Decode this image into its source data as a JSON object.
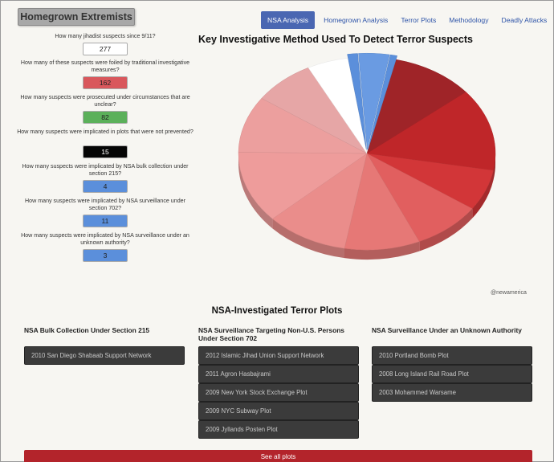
{
  "brand": {
    "title": "Homegrown Extremists"
  },
  "nav": {
    "items": [
      "NSA Analysis",
      "Homegrown Analysis",
      "Terror Plots",
      "Methodology",
      "Deadly Attacks"
    ]
  },
  "questions": [
    {
      "text": "How many jihadist suspects since 9/11?",
      "value": "277",
      "bg": "#ffffff",
      "color": "#222222"
    },
    {
      "text": "How many of these suspects were foiled by traditional investigative measures?",
      "value": "162",
      "bg": "#d9575c",
      "color": "#222222"
    },
    {
      "text": "How many suspects were prosecuted under circumstances that are unclear?",
      "value": "82",
      "bg": "#5bb05a",
      "color": "#222222"
    },
    {
      "text": "How many suspects were implicated in plots that were not prevented?",
      "value": "15",
      "bg": "#050505",
      "color": "#ffffff"
    },
    {
      "text": "How many suspects were implicated by NSA bulk collection under section 215?",
      "value": "4",
      "bg": "#5b8fdb",
      "color": "#222222"
    },
    {
      "text": "How many suspects were implicated by NSA surveillance under section 702?",
      "value": "11",
      "bg": "#5b8fdb",
      "color": "#222222"
    },
    {
      "text": "How many suspects were implicated by NSA surveillance under an unknown authority?",
      "value": "3",
      "bg": "#5b8fdb",
      "color": "#222222"
    }
  ],
  "chart": {
    "title": "Key Investigative Method Used To Detect Terror Suspects",
    "credit": "@newamerica"
  },
  "chart_data": {
    "type": "pie",
    "title": "Key Investigative Method Used To Detect Terror Suspects",
    "slices": [
      {
        "value": 12,
        "color": "#9f2428"
      },
      {
        "value": 16,
        "color": "#bf2629"
      },
      {
        "value": 8,
        "color": "#d23638"
      },
      {
        "value": 10,
        "color": "#e15f5f"
      },
      {
        "value": 11,
        "color": "#e67876"
      },
      {
        "value": 12,
        "color": "#ea8d8b"
      },
      {
        "value": 14,
        "color": "#ee9c9b"
      },
      {
        "value": 11,
        "color": "#ec9f9e"
      },
      {
        "value": 9,
        "color": "#e6a6a6"
      },
      {
        "value": 6,
        "color": "#ffffff"
      },
      {
        "value": 1.5,
        "color": "#5b8fdb"
      },
      {
        "value": 4.5,
        "color": "#6a9be2"
      },
      {
        "value": 1,
        "color": "#5b8fdb"
      }
    ]
  },
  "plots": {
    "section_title": "NSA-Investigated Terror Plots",
    "columns": [
      {
        "title": "NSA Bulk Collection Under Section 215",
        "items": [
          "2010 San Diego Shabaab Support Network"
        ]
      },
      {
        "title": "NSA Surveillance Targeting Non-U.S. Persons Under Section 702",
        "items": [
          "2012 Islamic Jihad Union Support Network",
          "2011 Agron Hasbajrami",
          "2009 New York Stock Exchange Plot",
          "2009 NYC Subway Plot",
          "2009 Jyllands Posten Plot"
        ]
      },
      {
        "title": "NSA Surveillance Under an Unknown Authority",
        "items": [
          "2010 Portland Bomb Plot",
          "2008 Long Island Rail Road Plot",
          "2003 Mohammed Warsame"
        ]
      }
    ],
    "see_all": "See all plots"
  }
}
